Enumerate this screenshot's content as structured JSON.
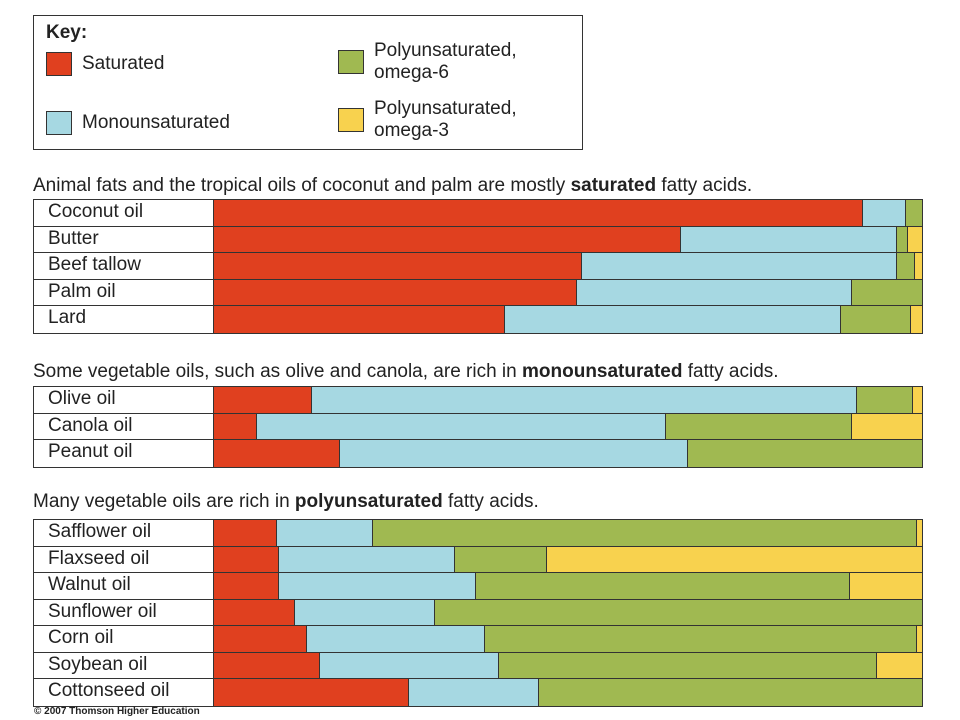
{
  "key": {
    "title": "Key:",
    "items": [
      {
        "id": "saturated",
        "label": "Saturated",
        "color": "#e0401f"
      },
      {
        "id": "monounsaturated",
        "label": "Monounsaturated",
        "color": "#a6d8e2"
      },
      {
        "id": "omega6",
        "label": "Polyunsaturated,\nomega-6",
        "color": "#a0b951"
      },
      {
        "id": "omega3",
        "label": "Polyunsaturated,\nomega-3",
        "color": "#f8d24e"
      }
    ]
  },
  "chart_data": {
    "type": "bar",
    "stacked": true,
    "units": "percent of total fatty acids",
    "series": [
      "Saturated",
      "Monounsaturated",
      "Polyunsaturated, omega-6",
      "Polyunsaturated, omega-3"
    ],
    "groups": [
      {
        "heading_pre": "Animal fats and the tropical oils of coconut and palm are mostly ",
        "heading_bold": "saturated",
        "heading_post": " fatty acids.",
        "rows": [
          {
            "name": "Coconut oil",
            "values": [
              91.7,
              6.0,
              2.3,
              0.0
            ]
          },
          {
            "name": "Butter",
            "values": [
              66.0,
              30.5,
              1.5,
              2.0
            ]
          },
          {
            "name": "Beef tallow",
            "values": [
              52.0,
              44.5,
              2.5,
              1.0
            ]
          },
          {
            "name": "Palm oil",
            "values": [
              51.3,
              38.8,
              9.9,
              0.0
            ]
          },
          {
            "name": "Lard",
            "values": [
              41.1,
              47.4,
              9.9,
              1.6
            ]
          }
        ]
      },
      {
        "heading_pre": "Some vegetable oils, such as olive and canola, are rich in ",
        "heading_bold": "monounsaturated",
        "heading_post": " fatty acids.",
        "rows": [
          {
            "name": "Olive oil",
            "values": [
              13.8,
              77.0,
              7.9,
              1.3
            ]
          },
          {
            "name": "Canola oil",
            "values": [
              6.1,
              57.8,
              26.2,
              9.9
            ]
          },
          {
            "name": "Peanut oil",
            "values": [
              17.8,
              49.2,
              33.0,
              0.0
            ]
          }
        ]
      },
      {
        "heading_pre": "Many vegetable oils are rich in ",
        "heading_bold": "polyunsaturated",
        "heading_post": " fatty acids.",
        "rows": [
          {
            "name": "Safflower oil",
            "values": [
              8.9,
              13.6,
              76.8,
              0.7
            ]
          },
          {
            "name": "Flaxseed oil",
            "values": [
              9.2,
              24.9,
              13.0,
              52.9
            ]
          },
          {
            "name": "Walnut oil",
            "values": [
              9.2,
              27.8,
              52.9,
              10.1
            ]
          },
          {
            "name": "Sunflower oil",
            "values": [
              11.4,
              19.8,
              68.8,
              0.0
            ]
          },
          {
            "name": "Corn oil",
            "values": [
              13.1,
              25.2,
              61.0,
              0.7
            ]
          },
          {
            "name": "Soybean oil",
            "values": [
              15.0,
              25.3,
              53.4,
              6.3
            ]
          },
          {
            "name": "Cottonseed oil",
            "values": [
              27.5,
              18.4,
              54.1,
              0.0
            ]
          }
        ]
      }
    ]
  },
  "copyright": "© 2007 Thomson Higher Education"
}
